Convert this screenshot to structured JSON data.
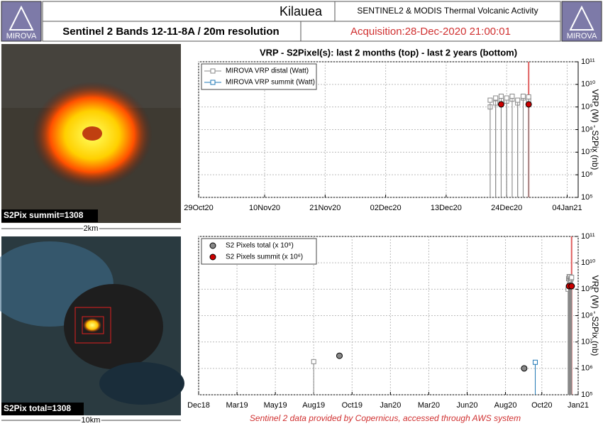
{
  "header": {
    "title": "Kilauea",
    "subtitle": "SENTINEL2 & MODIS Thermal Volcanic Activity",
    "bands": "Sentinel 2 Bands 12-11-8A / 20m resolution",
    "acquisition": "Acquisition:28-Dec-2020 21:00:01",
    "logo_left": "MIROVA",
    "logo_right": "MIROVA"
  },
  "panels": {
    "top_label": "S2Pix summit=1308",
    "top_scale": "2km",
    "bottom_label": "S2Pix total=1308",
    "bottom_scale": "10km"
  },
  "footer": "Sentinel 2 data provided by Copernicus, accessed through AWS system",
  "chart_data": [
    {
      "type": "scatter",
      "title": "VRP - S2Pixel(s): last 2 months (top) - last 2 years (bottom)",
      "ylabel": "VRP (W) - S2Pix (nb)",
      "yscale": "log",
      "grid": true,
      "legend": "upper left",
      "xlim": [
        "2020-10-29",
        "2021-01-06"
      ],
      "xticks": [
        {
          "value": "2020-10-29",
          "label": "29Oct20"
        },
        {
          "value": "2020-11-10",
          "label": "10Nov20"
        },
        {
          "value": "2020-11-21",
          "label": "21Nov20"
        },
        {
          "value": "2020-12-02",
          "label": "02Dec20"
        },
        {
          "value": "2020-12-13",
          "label": "13Dec20"
        },
        {
          "value": "2020-12-24",
          "label": "24Dec20"
        },
        {
          "value": "2021-01-04",
          "label": "04Jan21"
        }
      ],
      "ylim": [
        100000,
        100000000000
      ],
      "yticks": [
        {
          "value": 100000,
          "label": "10⁵"
        },
        {
          "value": 1000000,
          "label": "10⁶"
        },
        {
          "value": 10000000,
          "label": "10⁷"
        },
        {
          "value": 100000000,
          "label": "10⁸"
        },
        {
          "value": 1000000000,
          "label": "10⁹"
        },
        {
          "value": 10000000000,
          "label": "10¹⁰"
        },
        {
          "value": 100000000000,
          "label": "10¹¹"
        }
      ],
      "vline": {
        "x": "2020-12-28",
        "color": "#e06060"
      },
      "series": [
        {
          "name": "MIROVA VRP distal (Watt)",
          "color": "#888888",
          "marker": "square",
          "stem": true,
          "x": [
            "2020-12-21",
            "2020-12-21",
            "2020-12-22",
            "2020-12-22",
            "2020-12-23",
            "2020-12-23",
            "2020-12-24",
            "2020-12-24",
            "2020-12-25",
            "2020-12-25",
            "2020-12-26",
            "2020-12-26",
            "2020-12-27",
            "2020-12-27",
            "2020-12-28",
            "2020-12-28"
          ],
          "values": [
            1000000000,
            2000000000,
            1500000000,
            2500000000,
            2000000000,
            3000000000,
            1800000000,
            2500000000,
            2200000000,
            3000000000,
            1500000000,
            2000000000,
            2500000000,
            3000000000,
            2000000000,
            2800000000
          ]
        },
        {
          "name": "MIROVA VRP summit (Watt)",
          "color": "#1f77b4",
          "marker": "square",
          "stem": true,
          "x": [],
          "values": []
        },
        {
          "color": "#cc0000",
          "marker": "circle",
          "stem": false,
          "x": [
            "2020-12-23",
            "2020-12-28"
          ],
          "values": [
            1308000000,
            1308000000
          ]
        }
      ]
    },
    {
      "type": "scatter",
      "ylabel": "VRP (W) - S2Pix (nb)",
      "yscale": "log",
      "grid": true,
      "legend": "upper left",
      "xlim": [
        "2018-12-20",
        "2021-01-10"
      ],
      "xticks": [
        {
          "value": "2018-12-20",
          "label": "Dec18"
        },
        {
          "value": "2019-03-06",
          "label": "Mar19"
        },
        {
          "value": "2019-05-21",
          "label": "May19"
        },
        {
          "value": "2019-08-05",
          "label": "Aug19"
        },
        {
          "value": "2019-10-20",
          "label": "Oct19"
        },
        {
          "value": "2020-01-04",
          "label": "Jan20"
        },
        {
          "value": "2020-03-20",
          "label": "Mar20"
        },
        {
          "value": "2020-06-04",
          "label": "Jun20"
        },
        {
          "value": "2020-08-19",
          "label": "Aug20"
        },
        {
          "value": "2020-10-30",
          "label": "Oct20"
        },
        {
          "value": "2021-01-10",
          "label": "Jan21"
        }
      ],
      "ylim": [
        100000,
        100000000000
      ],
      "yticks": [
        {
          "value": 100000,
          "label": "10⁵"
        },
        {
          "value": 1000000,
          "label": "10⁶"
        },
        {
          "value": 10000000,
          "label": "10⁷"
        },
        {
          "value": 100000000,
          "label": "10⁸"
        },
        {
          "value": 1000000000,
          "label": "10⁹"
        },
        {
          "value": 10000000000,
          "label": "10¹⁰"
        },
        {
          "value": 100000000000,
          "label": "10¹¹"
        }
      ],
      "vline": {
        "x": "2020-12-28",
        "color": "#e06060"
      },
      "series": [
        {
          "color": "#888888",
          "marker": "square",
          "stem": true,
          "x": [
            "2019-08-05",
            "2020-12-21",
            "2020-12-22",
            "2020-12-23",
            "2020-12-24",
            "2020-12-25",
            "2020-12-26",
            "2020-12-27",
            "2020-12-28"
          ],
          "values": [
            1800000,
            1000000000,
            2500000000,
            3000000000,
            2000000000,
            3000000000,
            2200000000,
            2500000000,
            2800000000
          ]
        },
        {
          "color": "#1f77b4",
          "marker": "square",
          "stem": true,
          "x": [
            "2020-10-17"
          ],
          "values": [
            1700000
          ]
        },
        {
          "name": "S2 Pixels total (x 10⁶)",
          "color": "#888888",
          "marker": "circle",
          "stem": false,
          "x": [
            "2019-09-25",
            "2020-09-25",
            "2020-12-23",
            "2020-12-28"
          ],
          "values": [
            3000000,
            1000000,
            1308000000,
            1308000000
          ]
        },
        {
          "name": "S2 Pixels summit (x 10⁶)",
          "color": "#cc0000",
          "marker": "circle",
          "stem": false,
          "x": [
            "2020-12-23",
            "2020-12-28"
          ],
          "values": [
            1308000000,
            1308000000
          ]
        }
      ]
    }
  ]
}
